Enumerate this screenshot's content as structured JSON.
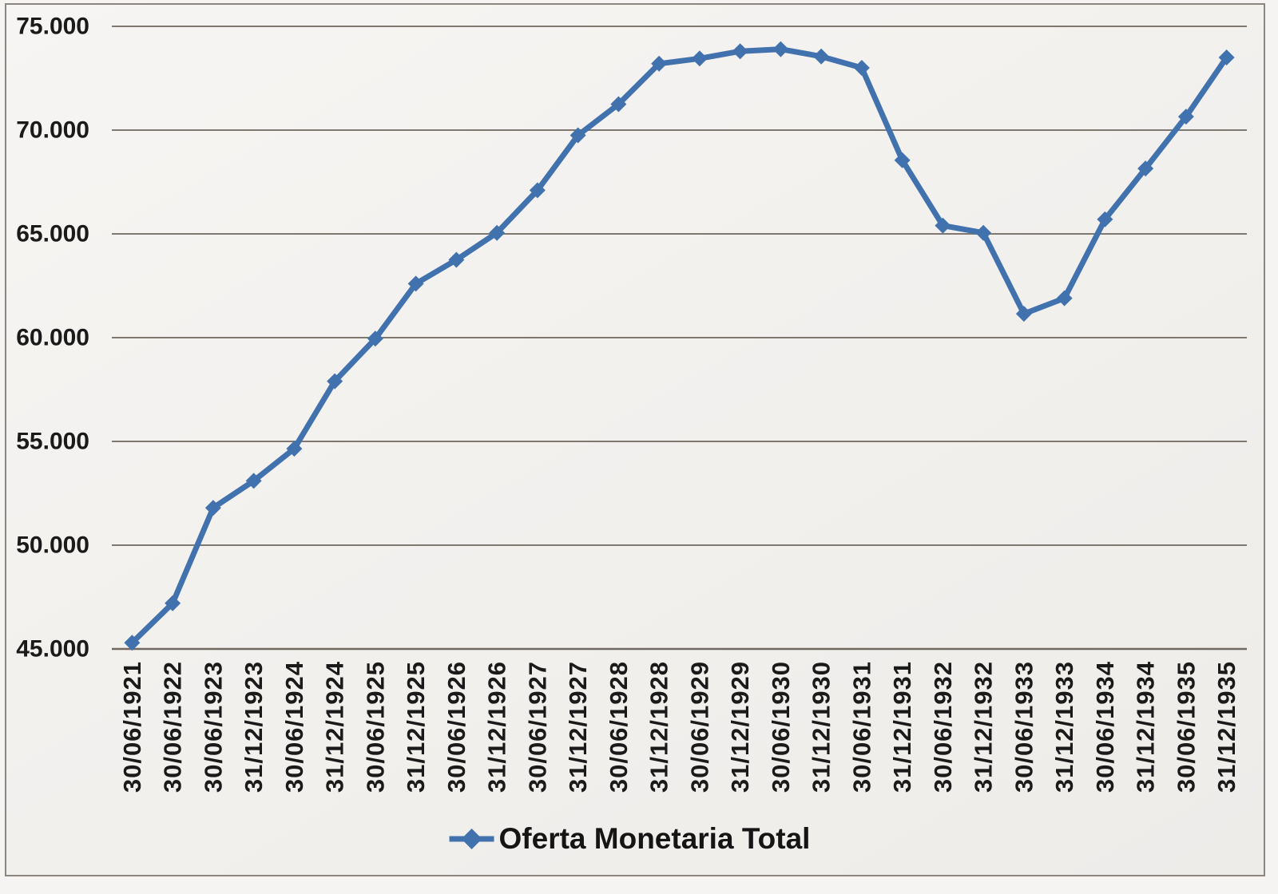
{
  "legend": {
    "label": "Oferta Monetaria Total"
  },
  "colors": {
    "series_blue": "#4172ae",
    "gridline": "#7e7870",
    "axis_line": "#6f6962",
    "text": "#1a1a1a",
    "frame_border": "#8b8680",
    "background": "#f2f0ed"
  },
  "chart_data": {
    "type": "line",
    "title": "",
    "xlabel": "",
    "ylabel": "",
    "grid": true,
    "legend_position": "bottom",
    "marker": "diamond",
    "ylim": [
      45000,
      75000
    ],
    "ytick_step": 5000,
    "ytick_labels": [
      "45.000",
      "50.000",
      "55.000",
      "60.000",
      "65.000",
      "70.000",
      "75.000"
    ],
    "categories": [
      "30/06/1921",
      "30/06/1922",
      "30/06/1923",
      "31/12/1923",
      "30/06/1924",
      "31/12/1924",
      "30/06/1925",
      "31/12/1925",
      "30/06/1926",
      "31/12/1926",
      "30/06/1927",
      "31/12/1927",
      "30/06/1928",
      "31/12/1928",
      "30/06/1929",
      "31/12/1929",
      "30/06/1930",
      "31/12/1930",
      "30/06/1931",
      "31/12/1931",
      "30/06/1932",
      "31/12/1932",
      "30/06/1933",
      "31/12/1933",
      "30/06/1934",
      "31/12/1934",
      "30/06/1935",
      "31/12/1935"
    ],
    "series": [
      {
        "name": "Oferta Monetaria Total",
        "color": "#4172ae",
        "values": [
          45300,
          47200,
          51800,
          53100,
          54650,
          57900,
          59950,
          62600,
          63750,
          65050,
          67100,
          69750,
          71250,
          73200,
          73450,
          73800,
          73900,
          73550,
          73000,
          68550,
          65400,
          65050,
          61150,
          61900,
          65700,
          68150,
          70650,
          73500
        ]
      }
    ]
  }
}
